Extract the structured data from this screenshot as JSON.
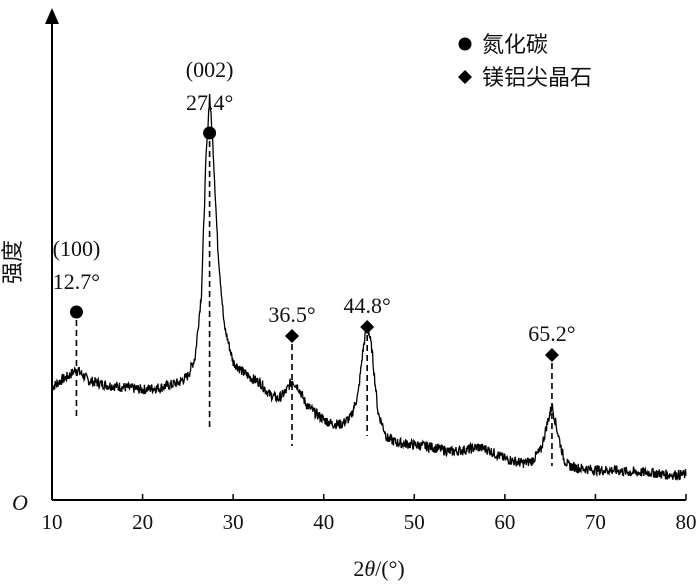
{
  "chart_data": {
    "type": "line",
    "xlabel": "2θ/(°)",
    "ylabel": "强度",
    "origin_label": "O",
    "xlim": [
      10,
      80
    ],
    "x_ticks": [
      10,
      20,
      30,
      40,
      50,
      60,
      70,
      80
    ],
    "y_ticks_shown": false,
    "legend": {
      "placement": "top-right",
      "entries": [
        {
          "marker": "circle",
          "label": "氮化碳"
        },
        {
          "marker": "diamond",
          "label": "镁铝尖晶石"
        }
      ]
    },
    "annotations": [
      {
        "x": 12.7,
        "marker": "circle",
        "hkl": "(100)",
        "label": "12.7°"
      },
      {
        "x": 27.4,
        "marker": "circle",
        "hkl": "(002)",
        "label": "27.4°"
      },
      {
        "x": 36.5,
        "marker": "diamond",
        "label": "36.5°"
      },
      {
        "x": 44.8,
        "marker": "diamond",
        "label": "44.8°"
      },
      {
        "x": 65.2,
        "marker": "diamond",
        "label": "65.2°"
      }
    ],
    "series": [
      {
        "x": [
          10,
          11,
          12,
          12.7,
          13.5,
          14,
          15,
          16,
          18,
          20,
          22,
          24,
          25,
          25.8,
          26.5,
          27,
          27.4,
          27.8,
          28.3,
          29,
          30,
          31,
          32,
          33,
          34,
          35,
          35.8,
          36.5,
          37.2,
          38,
          39,
          40,
          41,
          42,
          43,
          43.8,
          44.3,
          44.8,
          45.3,
          46,
          47,
          48,
          50,
          52,
          54,
          56,
          57,
          58,
          59,
          60,
          61,
          62,
          63,
          64,
          64.6,
          65.2,
          65.8,
          66.5,
          67,
          68,
          70,
          72,
          74,
          76,
          78,
          80
        ],
        "y": [
          0.245,
          0.26,
          0.272,
          0.285,
          0.27,
          0.26,
          0.255,
          0.25,
          0.245,
          0.24,
          0.245,
          0.255,
          0.27,
          0.31,
          0.45,
          0.74,
          0.88,
          0.76,
          0.55,
          0.38,
          0.3,
          0.28,
          0.265,
          0.255,
          0.23,
          0.22,
          0.235,
          0.26,
          0.245,
          0.21,
          0.19,
          0.175,
          0.165,
          0.165,
          0.18,
          0.23,
          0.32,
          0.385,
          0.33,
          0.19,
          0.135,
          0.125,
          0.12,
          0.115,
          0.105,
          0.11,
          0.115,
          0.11,
          0.1,
          0.09,
          0.085,
          0.08,
          0.085,
          0.11,
          0.16,
          0.205,
          0.15,
          0.09,
          0.075,
          0.07,
          0.065,
          0.065,
          0.06,
          0.06,
          0.055,
          0.055
        ]
      }
    ]
  }
}
